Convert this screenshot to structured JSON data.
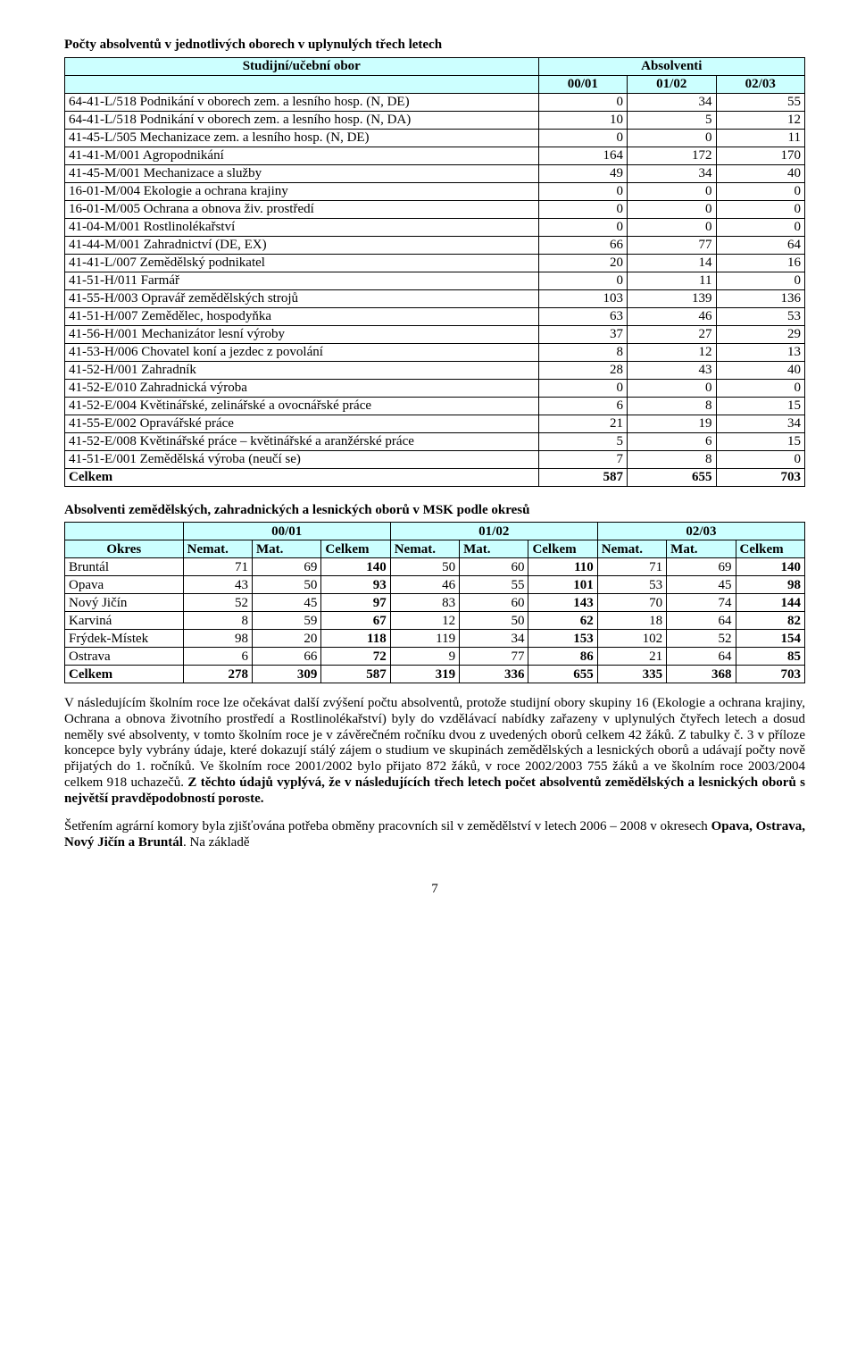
{
  "table1": {
    "title": "Počty absolventů v jednotlivých oborech v uplynulých třech letech",
    "col_header_left": "Studijní/učební obor",
    "col_header_right": "Absolventi",
    "years": [
      "00/01",
      "01/02",
      "02/03"
    ],
    "rows": [
      {
        "label": "64-41-L/518  Podnikání v oborech zem. a lesního hosp. (N, DE)",
        "v": [
          "0",
          "34",
          "55"
        ]
      },
      {
        "label": "64-41-L/518  Podnikání v oborech zem. a lesního hosp. (N, DA)",
        "v": [
          "10",
          "5",
          "12"
        ]
      },
      {
        "label": "41-45-L/505  Mechanizace zem. a lesního hosp. (N, DE)",
        "v": [
          "0",
          "0",
          "11"
        ]
      },
      {
        "label": "41-41-M/001  Agropodnikání",
        "v": [
          "164",
          "172",
          "170"
        ]
      },
      {
        "label": "41-45-M/001  Mechanizace a služby",
        "v": [
          "49",
          "34",
          "40"
        ]
      },
      {
        "label": "16-01-M/004  Ekologie a ochrana krajiny",
        "v": [
          "0",
          "0",
          "0"
        ]
      },
      {
        "label": "16-01-M/005  Ochrana a obnova živ. prostředí",
        "v": [
          "0",
          "0",
          "0"
        ]
      },
      {
        "label": "41-04-M/001  Rostlinolékařství",
        "v": [
          "0",
          "0",
          "0"
        ]
      },
      {
        "label": "41-44-M/001  Zahradnictví (DE, EX)",
        "v": [
          "66",
          "77",
          "64"
        ]
      },
      {
        "label": "41-41-L/007  Zemědělský podnikatel",
        "v": [
          "20",
          "14",
          "16"
        ]
      },
      {
        "label": "41-51-H/011  Farmář",
        "v": [
          "0",
          "11",
          "0"
        ]
      },
      {
        "label": "41-55-H/003  Opravář zemědělských strojů",
        "v": [
          "103",
          "139",
          "136"
        ]
      },
      {
        "label": "41-51-H/007  Zemědělec, hospodyňka",
        "v": [
          "63",
          "46",
          "53"
        ]
      },
      {
        "label": "41-56-H/001  Mechanizátor lesní výroby",
        "v": [
          "37",
          "27",
          "29"
        ]
      },
      {
        "label": "41-53-H/006  Chovatel koní a jezdec z povolání",
        "v": [
          "8",
          "12",
          "13"
        ]
      },
      {
        "label": "41-52-H/001  Zahradník",
        "v": [
          "28",
          "43",
          "40"
        ]
      },
      {
        "label": "41-52-E/010  Zahradnická výroba",
        "v": [
          "0",
          "0",
          "0"
        ]
      },
      {
        "label": "41-52-E/004  Květinářské, zelinářské a ovocnářské práce",
        "v": [
          "6",
          "8",
          "15"
        ]
      },
      {
        "label": "41-55-E/002  Opravářské práce",
        "v": [
          "21",
          "19",
          "34"
        ]
      },
      {
        "label": "41-52-E/008  Květinářské práce – květinářské a aranžérské práce",
        "v": [
          "5",
          "6",
          "15"
        ]
      },
      {
        "label": "41-51-E/001  Zemědělská výroba (neučí se)",
        "v": [
          "7",
          "8",
          "0"
        ]
      }
    ],
    "total_label": "Celkem",
    "total": [
      "587",
      "655",
      "703"
    ]
  },
  "table2": {
    "title": "Absolventi zemědělských, zahradnických a lesnických oborů v MSK podle okresů",
    "years": [
      "00/01",
      "01/02",
      "02/03"
    ],
    "okres_label": "Okres",
    "sub": [
      "Nemat.",
      "Mat.",
      "Celkem"
    ],
    "rows": [
      {
        "label": "Bruntál",
        "v": [
          "71",
          "69",
          "140",
          "50",
          "60",
          "110",
          "71",
          "69",
          "140"
        ]
      },
      {
        "label": "Opava",
        "v": [
          "43",
          "50",
          "93",
          "46",
          "55",
          "101",
          "53",
          "45",
          "98"
        ]
      },
      {
        "label": "Nový Jičín",
        "v": [
          "52",
          "45",
          "97",
          "83",
          "60",
          "143",
          "70",
          "74",
          "144"
        ]
      },
      {
        "label": "Karviná",
        "v": [
          "8",
          "59",
          "67",
          "12",
          "50",
          "62",
          "18",
          "64",
          "82"
        ]
      },
      {
        "label": "Frýdek-Místek",
        "v": [
          "98",
          "20",
          "118",
          "119",
          "34",
          "153",
          "102",
          "52",
          "154"
        ]
      },
      {
        "label": "Ostrava",
        "v": [
          "6",
          "66",
          "72",
          "9",
          "77",
          "86",
          "21",
          "64",
          "85"
        ]
      }
    ],
    "total_label": "Celkem",
    "total": [
      "278",
      "309",
      "587",
      "319",
      "336",
      "655",
      "335",
      "368",
      "703"
    ]
  },
  "para1_a": "V následujícím školním roce lze očekávat další zvýšení počtu absolventů, protože studijní obory skupiny 16 (Ekologie a ochrana krajiny, Ochrana a obnova životního prostředí a Rostlinolékařství) byly do vzdělávací nabídky zařazeny v uplynulých čtyřech letech a dosud neměly své absolventy, v tomto školním roce je v závěrečném ročníku dvou z uvedených oborů celkem 42 žáků. Z tabulky č. 3 v příloze koncepce byly vybrány údaje, které dokazují stálý zájem o studium ve skupinách zemědělských a lesnických oborů a udávají počty nově přijatých do 1. ročníků. Ve školním roce 2001/2002 bylo přijato 872 žáků, v roce 2002/2003 755 žáků a ve školním roce 2003/2004 celkem 918 uchazečů. ",
  "para1_b": "Z těchto údajů vyplývá, že v následujících třech letech počet absolventů zemědělských a lesnických oborů s největší pravděpodobností poroste.",
  "para2_a": "Šetřením agrární komory byla zjišťována potřeba obměny pracovních sil v zemědělství v letech 2006 – 2008 v okresech ",
  "para2_b": "Opava, Ostrava, Nový Jičín a Bruntál",
  "para2_c": ". Na základě",
  "pagenum": "7"
}
